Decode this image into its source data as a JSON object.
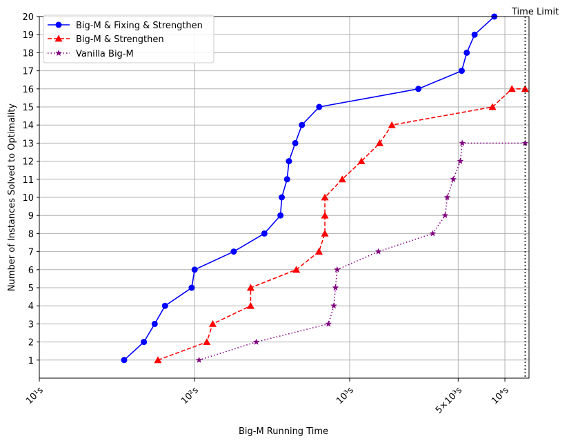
{
  "chart_data": {
    "type": "line",
    "title": "",
    "xlabel": "Big-M Running Time",
    "ylabel": "Number of Instances Solved to Optimality",
    "x_scale": "log",
    "xlim": [
      10,
      14300
    ],
    "ylim": [
      0,
      20
    ],
    "grid": true,
    "legend_position": "top-left",
    "x_tick_labels": [
      {
        "value": 10,
        "label": "10¹s"
      },
      {
        "value": 100,
        "label": "10²s"
      },
      {
        "value": 1000,
        "label": "10³s"
      },
      {
        "value": 5000,
        "label": "5×10³s"
      },
      {
        "value": 10000,
        "label": "10⁴s"
      }
    ],
    "y_ticks": [
      1,
      2,
      3,
      4,
      5,
      6,
      7,
      8,
      9,
      10,
      11,
      12,
      13,
      14,
      15,
      16,
      17,
      18,
      19,
      20
    ],
    "time_limit": {
      "value": 13500,
      "label": "Time Limit"
    },
    "series": [
      {
        "name": "Big-M & Fixing & Strengthen",
        "color": "#0000ff",
        "marker": "circle",
        "linestyle": "solid",
        "points": [
          {
            "x": 35.2,
            "y": 1
          },
          {
            "x": 47.2,
            "y": 2
          },
          {
            "x": 55.4,
            "y": 3
          },
          {
            "x": 64.6,
            "y": 4
          },
          {
            "x": 95.9,
            "y": 5
          },
          {
            "x": 100.2,
            "y": 6
          },
          {
            "x": 179,
            "y": 7
          },
          {
            "x": 282,
            "y": 8
          },
          {
            "x": 358,
            "y": 9
          },
          {
            "x": 365,
            "y": 10
          },
          {
            "x": 395,
            "y": 11
          },
          {
            "x": 406,
            "y": 12
          },
          {
            "x": 446,
            "y": 13
          },
          {
            "x": 492,
            "y": 14
          },
          {
            "x": 636,
            "y": 15
          },
          {
            "x": 2770,
            "y": 16
          },
          {
            "x": 5270,
            "y": 17
          },
          {
            "x": 5680,
            "y": 18
          },
          {
            "x": 6380,
            "y": 19
          },
          {
            "x": 8550,
            "y": 20
          }
        ]
      },
      {
        "name": "Big-M & Strengthen",
        "color": "#ff0000",
        "marker": "triangle-up",
        "linestyle": "dashed",
        "points": [
          {
            "x": 58.1,
            "y": 1
          },
          {
            "x": 120,
            "y": 2
          },
          {
            "x": 131,
            "y": 3
          },
          {
            "x": 230,
            "y": 4
          },
          {
            "x": 230,
            "y": 5
          },
          {
            "x": 453,
            "y": 6
          },
          {
            "x": 634,
            "y": 7
          },
          {
            "x": 692,
            "y": 8
          },
          {
            "x": 692,
            "y": 9
          },
          {
            "x": 692,
            "y": 10
          },
          {
            "x": 895,
            "y": 11
          },
          {
            "x": 1190,
            "y": 12
          },
          {
            "x": 1560,
            "y": 13
          },
          {
            "x": 1870,
            "y": 14
          },
          {
            "x": 8320,
            "y": 15
          },
          {
            "x": 11100,
            "y": 16
          },
          {
            "x": 13500,
            "y": 16
          }
        ]
      },
      {
        "name": "Vanilla Big-M",
        "color": "#800080",
        "marker": "star",
        "linestyle": "dotted",
        "points": [
          {
            "x": 107,
            "y": 1
          },
          {
            "x": 250,
            "y": 2
          },
          {
            "x": 730,
            "y": 3
          },
          {
            "x": 790,
            "y": 4
          },
          {
            "x": 810,
            "y": 5
          },
          {
            "x": 830,
            "y": 6
          },
          {
            "x": 1530,
            "y": 7
          },
          {
            "x": 3430,
            "y": 8
          },
          {
            "x": 4120,
            "y": 9
          },
          {
            "x": 4250,
            "y": 10
          },
          {
            "x": 4650,
            "y": 11
          },
          {
            "x": 5160,
            "y": 12
          },
          {
            "x": 5310,
            "y": 13
          },
          {
            "x": 13500,
            "y": 13
          }
        ]
      }
    ]
  }
}
